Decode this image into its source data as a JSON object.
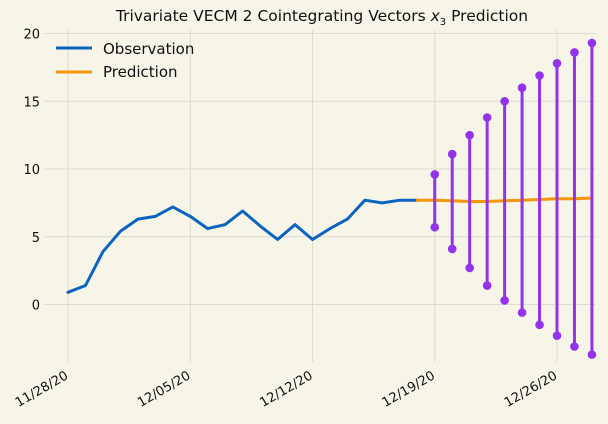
{
  "chart_data": {
    "type": "line",
    "title": {
      "prefix": "Trivariate VECM 2 Cointegrating Vectors ",
      "var": "x",
      "sub": "3",
      "suffix": " Prediction"
    },
    "xlabel": "",
    "ylabel": "",
    "x_ticks": [
      "11/28/20",
      "12/05/20",
      "12/12/20",
      "12/19/20",
      "12/26/20"
    ],
    "y_ticks": [
      0,
      5,
      10,
      15,
      20
    ],
    "xlim": [
      "2020-11-27",
      "2020-12-29"
    ],
    "ylim": [
      -4.5,
      21
    ],
    "grid": true,
    "legend_position": "top-left",
    "series": [
      {
        "name": "Observation",
        "color": "#0a64c0",
        "x": [
          "2020-11-28",
          "2020-11-29",
          "2020-11-30",
          "2020-12-01",
          "2020-12-02",
          "2020-12-03",
          "2020-12-04",
          "2020-12-05",
          "2020-12-06",
          "2020-12-07",
          "2020-12-08",
          "2020-12-09",
          "2020-12-10",
          "2020-12-11",
          "2020-12-12",
          "2020-12-13",
          "2020-12-14",
          "2020-12-15",
          "2020-12-16",
          "2020-12-17",
          "2020-12-18"
        ],
        "values": [
          0.9,
          1.4,
          3.9,
          5.4,
          6.3,
          6.5,
          7.2,
          6.5,
          5.6,
          5.9,
          6.9,
          5.8,
          4.8,
          5.9,
          4.8,
          5.6,
          6.3,
          7.7,
          7.5,
          7.7,
          7.7
        ]
      },
      {
        "name": "Prediction",
        "color": "#f5960a",
        "x": [
          "2020-12-18",
          "2020-12-19",
          "2020-12-20",
          "2020-12-21",
          "2020-12-22",
          "2020-12-23",
          "2020-12-24",
          "2020-12-25",
          "2020-12-26",
          "2020-12-27",
          "2020-12-28"
        ],
        "values": [
          7.7,
          7.7,
          7.65,
          7.6,
          7.6,
          7.65,
          7.7,
          7.75,
          7.8,
          7.8,
          7.85
        ]
      }
    ],
    "intervals": {
      "color": "#9333ea",
      "x": [
        "2020-12-19",
        "2020-12-20",
        "2020-12-21",
        "2020-12-22",
        "2020-12-23",
        "2020-12-24",
        "2020-12-25",
        "2020-12-26",
        "2020-12-27",
        "2020-12-28"
      ],
      "upper": [
        9.6,
        11.1,
        12.5,
        13.8,
        15.0,
        16.0,
        16.9,
        17.8,
        18.6,
        19.3
      ],
      "lower": [
        5.7,
        4.1,
        2.7,
        1.4,
        0.3,
        -0.6,
        -1.5,
        -2.3,
        -3.1,
        -3.7
      ]
    }
  }
}
